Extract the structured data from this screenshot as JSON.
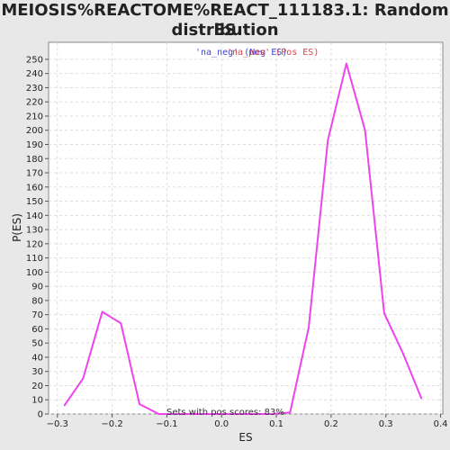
{
  "chart_data": {
    "type": "line",
    "title_line1": "MEIOSIS%REACTOME%REACT_111183.1: Random ES",
    "title_line2": "distribution",
    "xlabel": "ES",
    "ylabel": "P(ES)",
    "xlim": [
      -0.316,
      0.404
    ],
    "ylim": [
      0,
      262
    ],
    "x_ticks": [
      -0.3,
      -0.2,
      -0.1,
      0.0,
      0.1,
      0.2,
      0.3,
      0.4
    ],
    "x_tick_labels": [
      "−0.3",
      "−0.2",
      "−0.1",
      "0.0",
      "0.1",
      "0.2",
      "0.3",
      "0.4"
    ],
    "y_ticks": [
      0,
      10,
      20,
      30,
      40,
      50,
      60,
      70,
      80,
      90,
      100,
      110,
      120,
      130,
      140,
      150,
      160,
      170,
      180,
      190,
      200,
      210,
      220,
      230,
      240,
      250
    ],
    "grid": true,
    "legend": [
      {
        "label": "'na_neg' (Neg ES)",
        "color": "#4444cc"
      },
      {
        "label": "'na_pos' (Pos ES)",
        "color": "#dd4444"
      }
    ],
    "annotation": "Sets with pos scores: 83%",
    "line_color": "#ee44ee",
    "series": [
      {
        "x": [
          -0.287,
          -0.253,
          -0.218,
          -0.184,
          -0.15,
          -0.115,
          -0.081,
          -0.047,
          -0.012,
          0.022,
          0.056,
          0.091,
          0.125,
          0.159,
          0.194,
          0.228,
          0.262,
          0.297,
          0.331,
          0.365
        ],
        "y": [
          6,
          25,
          72,
          64,
          7,
          0,
          0,
          0,
          0,
          0,
          0,
          0,
          1,
          61,
          193,
          247,
          200,
          71,
          43,
          11
        ]
      }
    ]
  }
}
